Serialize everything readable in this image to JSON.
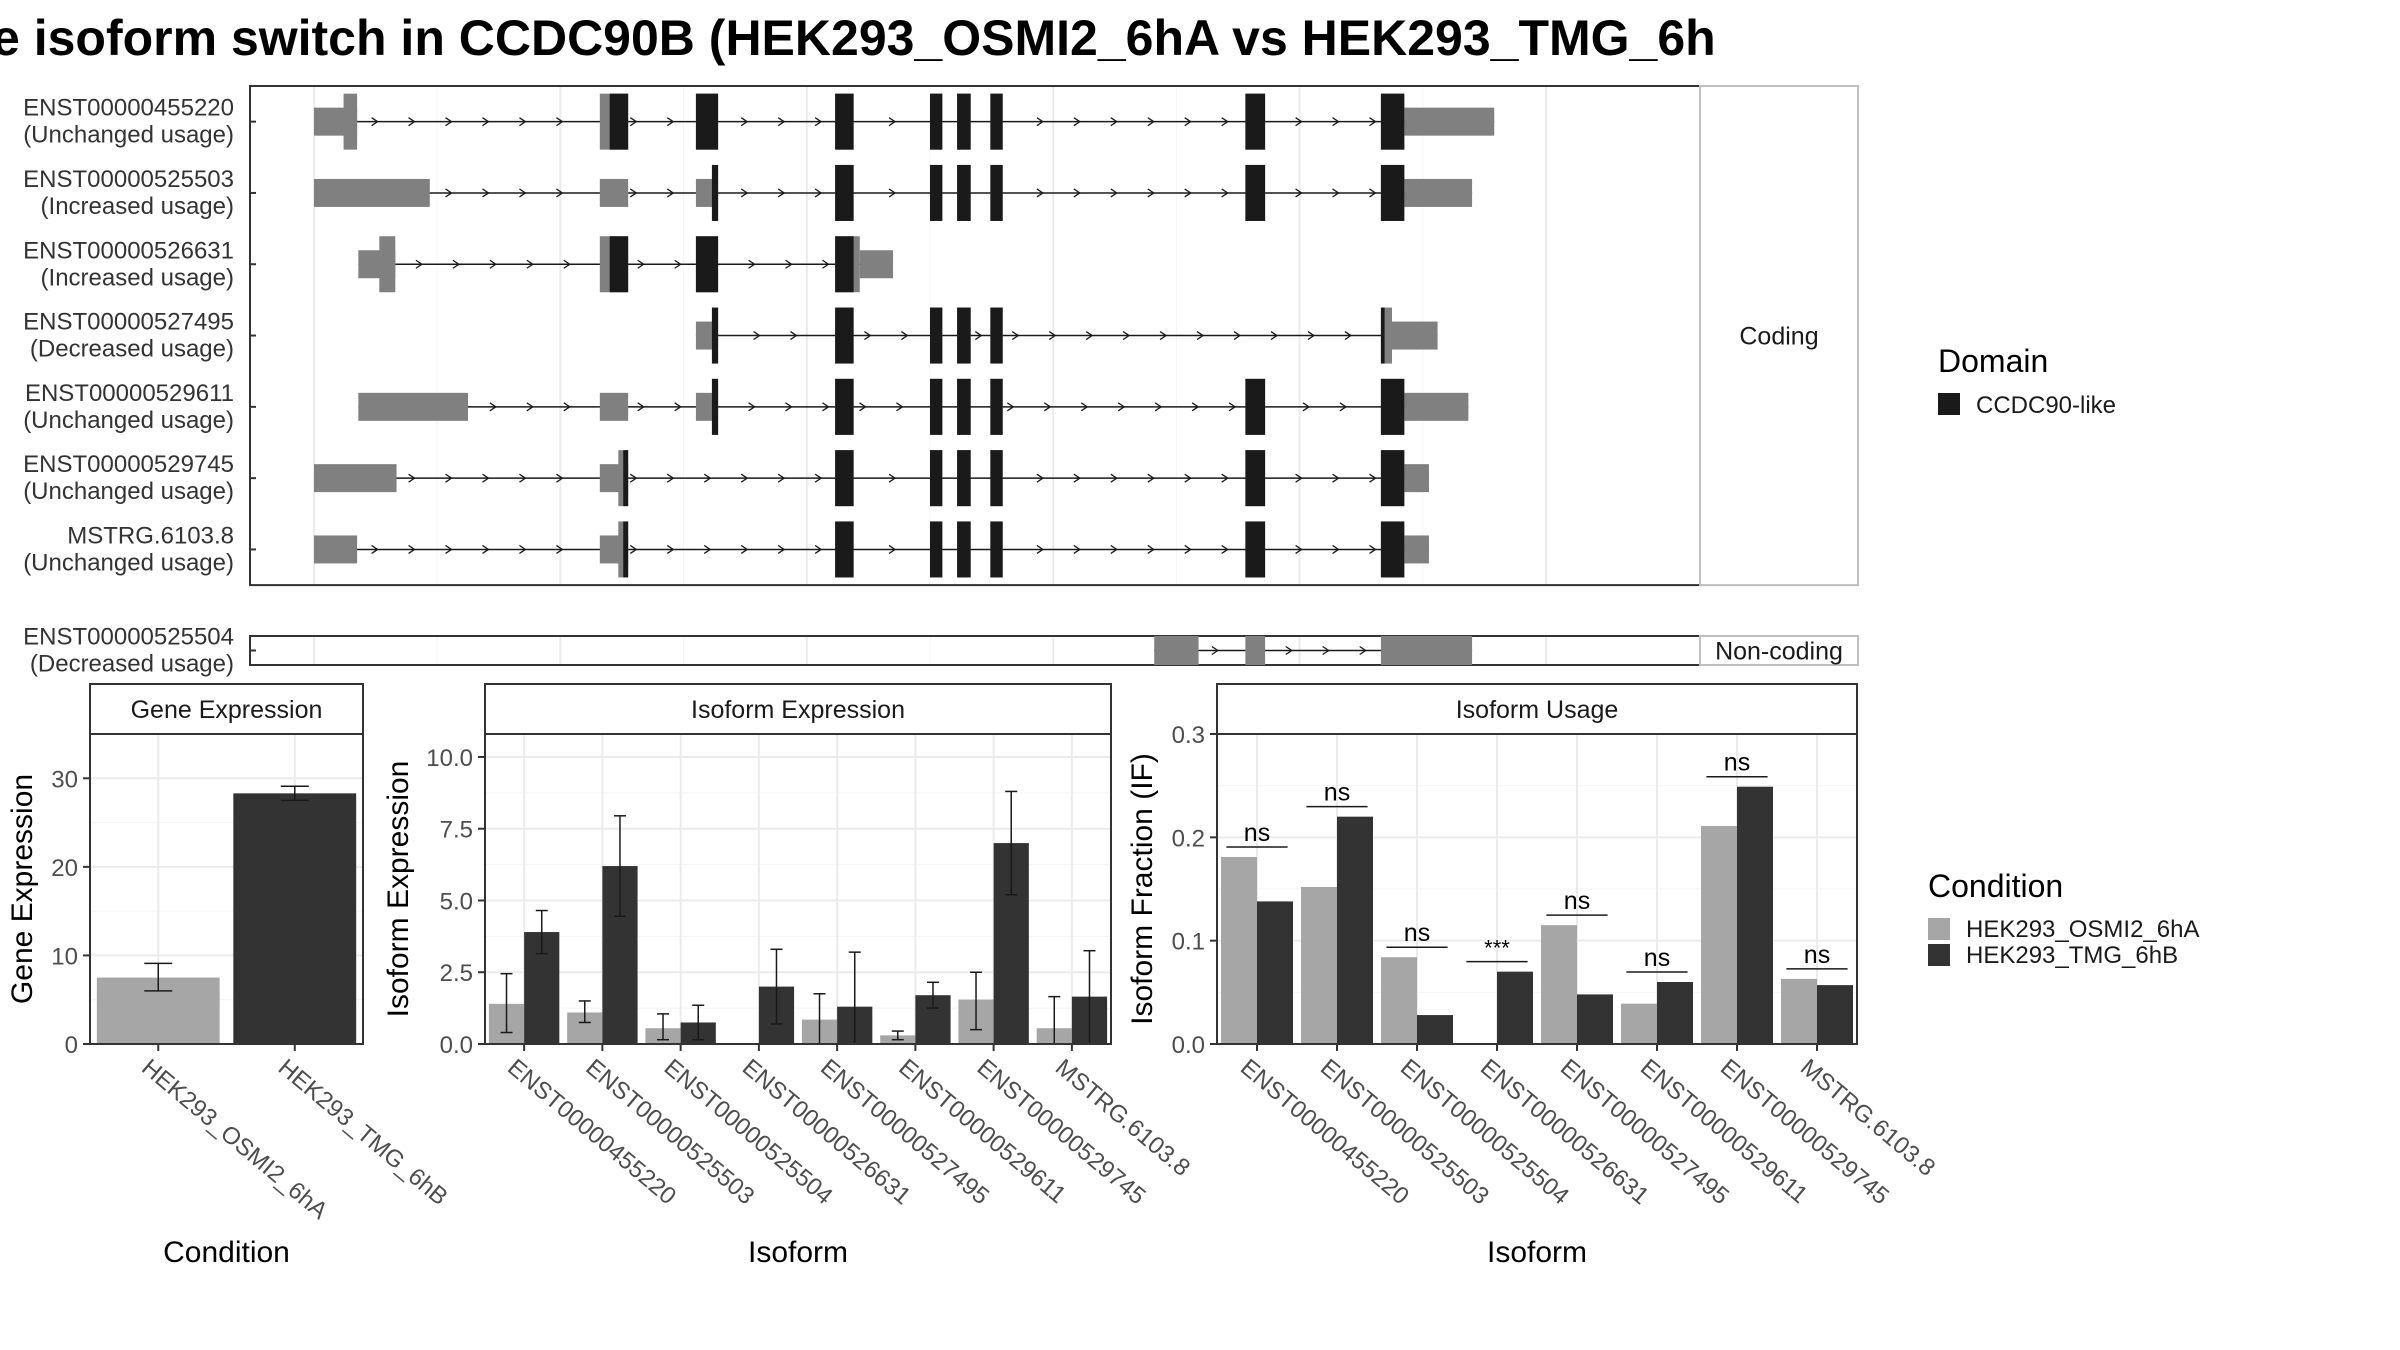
{
  "title": "e isoform switch in CCDC90B (HEK293_OSMI2_6hA vs HEK293_TMG_6h",
  "colors": {
    "cond1": "#a6a6a6",
    "cond2": "#333333",
    "utr": "#808080",
    "cds": "#1a1a1a",
    "domain": "#1a1a1a"
  },
  "structure": {
    "coding_label": "Coding",
    "noncoding_label": "Non-coding",
    "genomic_range": [
      0,
      1000
    ],
    "transcripts": [
      {
        "id": "ENST00000455220",
        "status": "(Unchanged usage)",
        "group": "coding",
        "exons": [
          {
            "start": 0,
            "end": 35,
            "type": "utr"
          },
          {
            "start": 24,
            "end": 35,
            "type": "cds"
          },
          {
            "start": 232,
            "end": 255,
            "type": "cds"
          },
          {
            "start": 310,
            "end": 328,
            "type": "cds"
          },
          {
            "start": 423,
            "end": 438,
            "type": "cds"
          },
          {
            "start": 500,
            "end": 510,
            "type": "cds"
          },
          {
            "start": 522,
            "end": 533,
            "type": "cds"
          },
          {
            "start": 549,
            "end": 559,
            "type": "cds"
          },
          {
            "start": 756,
            "end": 772,
            "type": "cds"
          },
          {
            "start": 866,
            "end": 885,
            "type": "cds"
          },
          {
            "start": 885,
            "end": 958,
            "type": "utr"
          }
        ],
        "domains": [
          {
            "start": 240,
            "end": 255
          },
          {
            "start": 310,
            "end": 328
          },
          {
            "start": 423,
            "end": 438
          },
          {
            "start": 500,
            "end": 510
          },
          {
            "start": 522,
            "end": 533
          },
          {
            "start": 549,
            "end": 559
          },
          {
            "start": 756,
            "end": 772
          },
          {
            "start": 866,
            "end": 885
          }
        ]
      },
      {
        "id": "ENST00000525503",
        "status": "(Increased usage)",
        "group": "coding",
        "exons": [
          {
            "start": 0,
            "end": 94,
            "type": "utr"
          },
          {
            "start": 232,
            "end": 255,
            "type": "utr"
          },
          {
            "start": 310,
            "end": 328,
            "type": "utr"
          },
          {
            "start": 323,
            "end": 328,
            "type": "cds"
          },
          {
            "start": 423,
            "end": 438,
            "type": "cds"
          },
          {
            "start": 500,
            "end": 510,
            "type": "cds"
          },
          {
            "start": 522,
            "end": 533,
            "type": "cds"
          },
          {
            "start": 549,
            "end": 559,
            "type": "cds"
          },
          {
            "start": 756,
            "end": 772,
            "type": "cds"
          },
          {
            "start": 866,
            "end": 885,
            "type": "cds"
          },
          {
            "start": 885,
            "end": 940,
            "type": "utr"
          }
        ],
        "domains": [
          {
            "start": 323,
            "end": 328
          },
          {
            "start": 423,
            "end": 438
          },
          {
            "start": 500,
            "end": 510
          },
          {
            "start": 522,
            "end": 533
          },
          {
            "start": 549,
            "end": 559
          },
          {
            "start": 756,
            "end": 772
          },
          {
            "start": 866,
            "end": 885
          }
        ]
      },
      {
        "id": "ENST00000526631",
        "status": "(Increased usage)",
        "group": "coding",
        "exons": [
          {
            "start": 36,
            "end": 66,
            "type": "utr"
          },
          {
            "start": 53,
            "end": 66,
            "type": "cds"
          },
          {
            "start": 232,
            "end": 255,
            "type": "cds"
          },
          {
            "start": 310,
            "end": 328,
            "type": "cds"
          },
          {
            "start": 423,
            "end": 443,
            "type": "cds"
          },
          {
            "start": 443,
            "end": 470,
            "type": "utr"
          }
        ],
        "domains": [
          {
            "start": 240,
            "end": 255
          },
          {
            "start": 310,
            "end": 328
          },
          {
            "start": 423,
            "end": 438
          }
        ]
      },
      {
        "id": "ENST00000527495",
        "status": "(Decreased usage)",
        "group": "coding",
        "exons": [
          {
            "start": 310,
            "end": 328,
            "type": "utr"
          },
          {
            "start": 323,
            "end": 328,
            "type": "cds"
          },
          {
            "start": 423,
            "end": 438,
            "type": "cds"
          },
          {
            "start": 500,
            "end": 510,
            "type": "cds"
          },
          {
            "start": 522,
            "end": 533,
            "type": "cds"
          },
          {
            "start": 549,
            "end": 559,
            "type": "cds"
          },
          {
            "start": 866,
            "end": 875,
            "type": "cds"
          },
          {
            "start": 875,
            "end": 912,
            "type": "utr"
          }
        ],
        "domains": [
          {
            "start": 323,
            "end": 328
          },
          {
            "start": 423,
            "end": 438
          },
          {
            "start": 500,
            "end": 510
          },
          {
            "start": 522,
            "end": 533
          },
          {
            "start": 549,
            "end": 559
          },
          {
            "start": 866,
            "end": 869
          }
        ]
      },
      {
        "id": "ENST00000529611",
        "status": "(Unchanged usage)",
        "group": "coding",
        "exons": [
          {
            "start": 36,
            "end": 125,
            "type": "utr"
          },
          {
            "start": 232,
            "end": 255,
            "type": "utr"
          },
          {
            "start": 310,
            "end": 328,
            "type": "utr"
          },
          {
            "start": 323,
            "end": 328,
            "type": "cds"
          },
          {
            "start": 423,
            "end": 438,
            "type": "cds"
          },
          {
            "start": 500,
            "end": 510,
            "type": "cds"
          },
          {
            "start": 522,
            "end": 533,
            "type": "cds"
          },
          {
            "start": 549,
            "end": 559,
            "type": "cds"
          },
          {
            "start": 756,
            "end": 772,
            "type": "cds"
          },
          {
            "start": 866,
            "end": 885,
            "type": "cds"
          },
          {
            "start": 885,
            "end": 937,
            "type": "utr"
          }
        ],
        "domains": [
          {
            "start": 323,
            "end": 328
          },
          {
            "start": 423,
            "end": 438
          },
          {
            "start": 500,
            "end": 510
          },
          {
            "start": 522,
            "end": 533
          },
          {
            "start": 549,
            "end": 559
          },
          {
            "start": 756,
            "end": 772
          },
          {
            "start": 866,
            "end": 885
          }
        ]
      },
      {
        "id": "ENST00000529745",
        "status": "(Unchanged usage)",
        "group": "coding",
        "exons": [
          {
            "start": 0,
            "end": 67,
            "type": "utr"
          },
          {
            "start": 232,
            "end": 255,
            "type": "utr"
          },
          {
            "start": 247,
            "end": 255,
            "type": "cds"
          },
          {
            "start": 423,
            "end": 438,
            "type": "cds"
          },
          {
            "start": 500,
            "end": 510,
            "type": "cds"
          },
          {
            "start": 522,
            "end": 533,
            "type": "cds"
          },
          {
            "start": 549,
            "end": 559,
            "type": "cds"
          },
          {
            "start": 756,
            "end": 772,
            "type": "cds"
          },
          {
            "start": 866,
            "end": 885,
            "type": "cds"
          },
          {
            "start": 885,
            "end": 905,
            "type": "utr"
          }
        ],
        "domains": [
          {
            "start": 251,
            "end": 255
          },
          {
            "start": 423,
            "end": 438
          },
          {
            "start": 500,
            "end": 510
          },
          {
            "start": 522,
            "end": 533
          },
          {
            "start": 549,
            "end": 559
          },
          {
            "start": 756,
            "end": 772
          },
          {
            "start": 866,
            "end": 885
          }
        ]
      },
      {
        "id": "MSTRG.6103.8",
        "status": "(Unchanged usage)",
        "group": "coding",
        "exons": [
          {
            "start": 0,
            "end": 35,
            "type": "utr"
          },
          {
            "start": 232,
            "end": 255,
            "type": "utr"
          },
          {
            "start": 247,
            "end": 255,
            "type": "cds"
          },
          {
            "start": 423,
            "end": 438,
            "type": "cds"
          },
          {
            "start": 500,
            "end": 510,
            "type": "cds"
          },
          {
            "start": 522,
            "end": 533,
            "type": "cds"
          },
          {
            "start": 549,
            "end": 559,
            "type": "cds"
          },
          {
            "start": 756,
            "end": 772,
            "type": "cds"
          },
          {
            "start": 866,
            "end": 885,
            "type": "cds"
          },
          {
            "start": 885,
            "end": 905,
            "type": "utr"
          }
        ],
        "domains": [
          {
            "start": 251,
            "end": 255
          },
          {
            "start": 423,
            "end": 438
          },
          {
            "start": 500,
            "end": 510
          },
          {
            "start": 522,
            "end": 533
          },
          {
            "start": 549,
            "end": 559
          },
          {
            "start": 756,
            "end": 772
          },
          {
            "start": 866,
            "end": 885
          }
        ]
      },
      {
        "id": "ENST00000525504",
        "status": "(Decreased usage)",
        "group": "noncoding",
        "exons": [
          {
            "start": 682,
            "end": 718,
            "type": "utr"
          },
          {
            "start": 756,
            "end": 772,
            "type": "utr"
          },
          {
            "start": 866,
            "end": 940,
            "type": "utr"
          }
        ],
        "domains": []
      }
    ]
  },
  "legend_domain": {
    "title": "Domain",
    "items": [
      "CCDC90-like"
    ]
  },
  "legend_condition": {
    "title": "Condition",
    "items": [
      "HEK293_OSMI2_6hA",
      "HEK293_TMG_6hB"
    ]
  },
  "chart_data": [
    {
      "type": "bar",
      "title": "Gene Expression",
      "xlabel": "Condition",
      "ylabel": "Gene Expression",
      "categories": [
        "HEK293_OSMI2_6hA",
        "HEK293_TMG_6hB"
      ],
      "values": [
        7.5,
        28.3
      ],
      "errors": [
        [
          6.0,
          9.1
        ],
        [
          27.5,
          29.1
        ]
      ],
      "ylim": [
        0,
        35
      ],
      "yticks": [
        0,
        10,
        20,
        30
      ]
    },
    {
      "type": "bar",
      "title": "Isoform Expression",
      "xlabel": "Isoform",
      "ylabel": "Isoform Expression",
      "categories": [
        "ENST00000455220",
        "ENST00000525503",
        "ENST00000525504",
        "ENST00000526631",
        "ENST00000527495",
        "ENST00000529611",
        "ENST00000529745",
        "MSTRG.6103.8"
      ],
      "series": [
        {
          "name": "HEK293_OSMI2_6hA",
          "values": [
            1.4,
            1.1,
            0.55,
            0.0,
            0.85,
            0.3,
            1.55,
            0.55
          ],
          "errors": [
            [
              0.4,
              2.45
            ],
            [
              0.75,
              1.5
            ],
            [
              0.15,
              1.05
            ],
            [
              0.0,
              0.0
            ],
            [
              0.0,
              1.75
            ],
            [
              0.15,
              0.45
            ],
            [
              0.5,
              2.5
            ],
            [
              0.0,
              1.65
            ]
          ]
        },
        {
          "name": "HEK293_TMG_6hB",
          "values": [
            3.9,
            6.2,
            0.75,
            2.0,
            1.3,
            1.7,
            7.0,
            1.65
          ],
          "errors": [
            [
              3.15,
              4.65
            ],
            [
              4.45,
              7.95
            ],
            [
              0.15,
              1.35
            ],
            [
              0.7,
              3.3
            ],
            [
              0.0,
              3.2
            ],
            [
              1.25,
              2.15
            ],
            [
              5.2,
              8.8
            ],
            [
              0.0,
              3.25
            ]
          ]
        }
      ],
      "ylim": [
        0,
        10.8
      ],
      "yticks": [
        0.0,
        2.5,
        5.0,
        7.5,
        10.0
      ]
    },
    {
      "type": "bar",
      "title": "Isoform Usage",
      "xlabel": "Isoform",
      "ylabel": "Isoform Fraction (IF)",
      "categories": [
        "ENST00000455220",
        "ENST00000525503",
        "ENST00000525504",
        "ENST00000526631",
        "ENST00000527495",
        "ENST00000529611",
        "ENST00000529745",
        "MSTRG.6103.8"
      ],
      "series": [
        {
          "name": "HEK293_OSMI2_6hA",
          "values": [
            0.181,
            0.152,
            0.084,
            0.0,
            0.115,
            0.039,
            0.211,
            0.063
          ]
        },
        {
          "name": "HEK293_TMG_6hB",
          "values": [
            0.138,
            0.22,
            0.028,
            0.07,
            0.048,
            0.06,
            0.249,
            0.057
          ]
        }
      ],
      "significance": [
        "ns",
        "ns",
        "ns",
        "***",
        "ns",
        "ns",
        "ns",
        "ns"
      ],
      "ylim": [
        0,
        0.3
      ],
      "yticks": [
        0.0,
        0.1,
        0.2,
        0.3
      ]
    }
  ]
}
